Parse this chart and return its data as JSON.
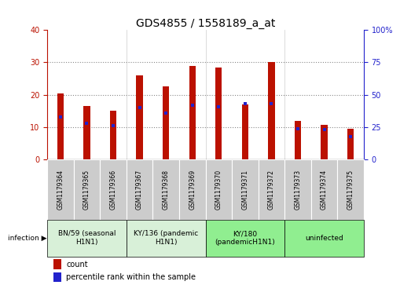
{
  "title": "GDS4855 / 1558189_a_at",
  "samples": [
    "GSM1179364",
    "GSM1179365",
    "GSM1179366",
    "GSM1179367",
    "GSM1179368",
    "GSM1179369",
    "GSM1179370",
    "GSM1179371",
    "GSM1179372",
    "GSM1179373",
    "GSM1179374",
    "GSM1179375"
  ],
  "counts": [
    20.3,
    16.5,
    15.2,
    26.0,
    22.5,
    29.0,
    28.5,
    17.0,
    30.2,
    12.0,
    10.8,
    9.5
  ],
  "percentile_ranks": [
    33,
    28,
    26,
    40,
    36,
    42,
    41,
    43,
    43,
    24,
    23,
    18
  ],
  "groups": [
    {
      "label": "BN/59 (seasonal\nH1N1)",
      "start": 0,
      "end": 3,
      "color": "#d8f0d8"
    },
    {
      "label": "KY/136 (pandemic\nH1N1)",
      "start": 3,
      "end": 6,
      "color": "#d8f0d8"
    },
    {
      "label": "KY/180\n(pandemicH1N1)",
      "start": 6,
      "end": 9,
      "color": "#90ee90"
    },
    {
      "label": "uninfected",
      "start": 9,
      "end": 12,
      "color": "#90ee90"
    }
  ],
  "ylim_left": [
    0,
    40
  ],
  "ylim_right": [
    0,
    100
  ],
  "yticks_left": [
    0,
    10,
    20,
    30,
    40
  ],
  "yticks_right": [
    0,
    25,
    50,
    75,
    100
  ],
  "bar_color": "#bb1100",
  "dot_color": "#2222cc",
  "bar_width": 0.25,
  "background_color": "#ffffff",
  "grid_color": "#888888",
  "title_fontsize": 10,
  "tick_fontsize": 7,
  "sample_fontsize": 5.5,
  "group_fontsize": 6.5,
  "legend_fontsize": 7
}
